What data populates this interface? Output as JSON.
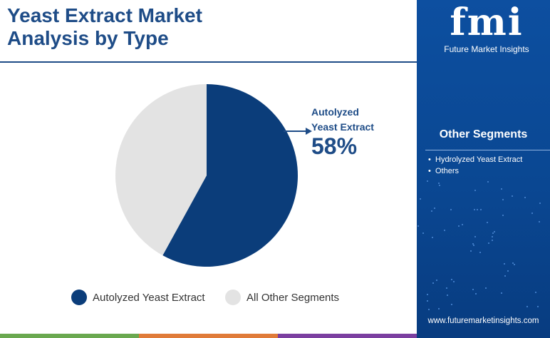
{
  "title": "Yeast Extract Market Analysis by Type",
  "brand": {
    "logo_text": "fmi",
    "name": "Future Market Insights",
    "website": "www.futuremarketinsights.com"
  },
  "side_panel": {
    "heading": "Other Segments",
    "items": [
      "Hydrolyzed Yeast Extract",
      "Others"
    ]
  },
  "chart_data": {
    "type": "pie",
    "title": "",
    "slices": [
      {
        "name": "Autolyzed Yeast Extract",
        "value": 58,
        "color": "#0b3d7a"
      },
      {
        "name": "All Other Segments",
        "value": 42,
        "color": "#e3e3e3"
      }
    ],
    "callout": {
      "label_line1": "Autolyzed",
      "label_line2": "Yeast Extract",
      "value_text": "58%"
    },
    "legend": {
      "placement": "bottom",
      "entries": [
        {
          "label": "Autolyzed Yeast Extract",
          "color": "#0b3d7a"
        },
        {
          "label": "All Other Segments",
          "color": "#e3e3e3"
        }
      ]
    }
  },
  "colors": {
    "accent": "#1e4c87",
    "panel": "#0a4792",
    "bottom_bar": [
      "#6aa84f",
      "#e07b39",
      "#7b3fa0"
    ]
  }
}
